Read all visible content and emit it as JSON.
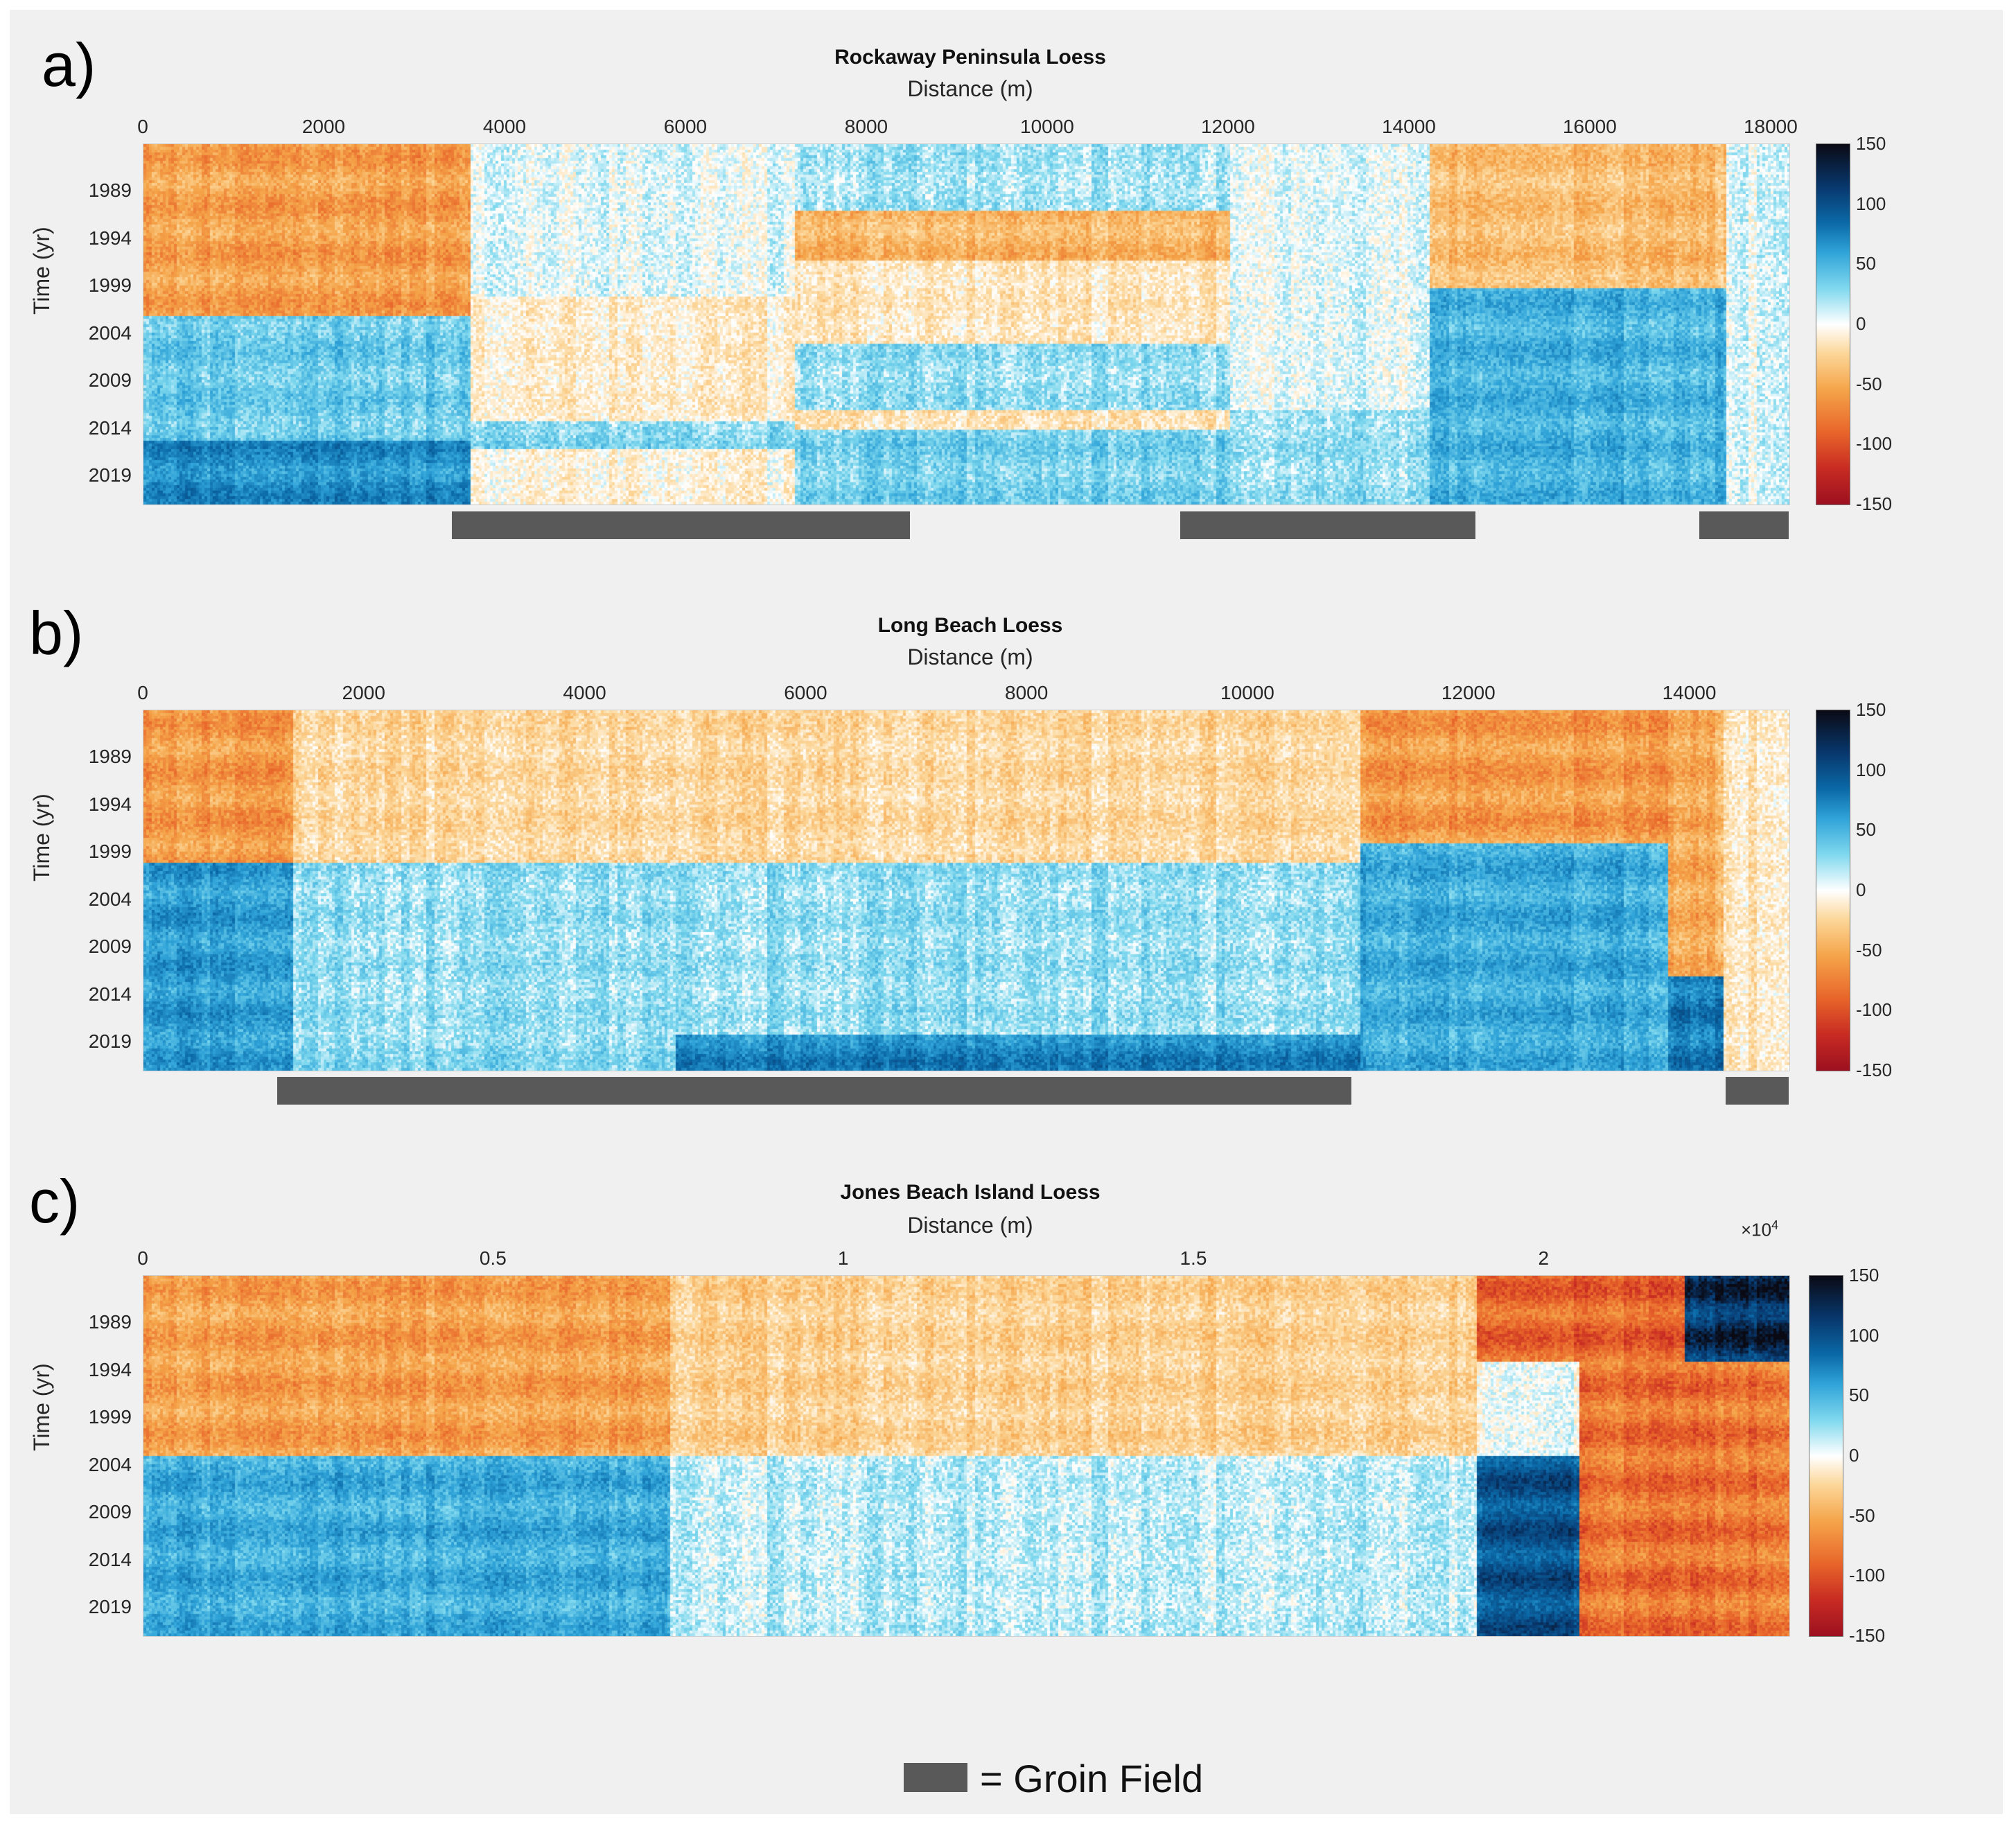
{
  "colorbar": {
    "ticks": [
      "150",
      "100",
      "50",
      "0",
      "-50",
      "-100",
      "-150"
    ],
    "colors": [
      "#0a0a14",
      "#08386e",
      "#0b6aa8",
      "#2fa3d8",
      "#7fd8ee",
      "#ffffff",
      "#fcd79a",
      "#f5a54a",
      "#e8652a",
      "#c82b22",
      "#9c1020"
    ]
  },
  "legend": {
    "label": "= Groin Field",
    "swatch_color": "#595959"
  },
  "chart_data": [
    {
      "type": "heatmap",
      "panel": "a)",
      "title": "Rockaway Peninsula Loess",
      "xlabel": "Distance (m)",
      "ylabel": "Time (yr)",
      "xlim": [
        0,
        18200
      ],
      "xticks": [
        "0",
        "2000",
        "4000",
        "6000",
        "8000",
        "10000",
        "12000",
        "14000",
        "16000",
        "18000"
      ],
      "xtick_values": [
        0,
        2000,
        4000,
        6000,
        8000,
        10000,
        12000,
        14000,
        16000,
        18000
      ],
      "ylim": [
        1984,
        2022
      ],
      "yticks": [
        "1989",
        "1994",
        "1999",
        "2004",
        "2009",
        "2014",
        "2019"
      ],
      "ytick_values": [
        1989,
        1994,
        1999,
        2004,
        2009,
        2014,
        2019
      ],
      "clim": [
        -150,
        150
      ],
      "groin_fields_m": [
        [
          3420,
          8480
        ],
        [
          11470,
          14740
        ],
        [
          17210,
          18250
        ]
      ],
      "regions": [
        {
          "x": [
            0,
            3600
          ],
          "y": [
            1984,
            2002
          ],
          "value": -70
        },
        {
          "x": [
            0,
            3600
          ],
          "y": [
            2002,
            2015
          ],
          "value": 40
        },
        {
          "x": [
            0,
            3600
          ],
          "y": [
            2015,
            2022
          ],
          "value": 80
        },
        {
          "x": [
            3600,
            7200
          ],
          "y": [
            1984,
            2000
          ],
          "value": 5
        },
        {
          "x": [
            3600,
            7200
          ],
          "y": [
            2000,
            2013
          ],
          "value": -15
        },
        {
          "x": [
            3600,
            7200
          ],
          "y": [
            2013,
            2016
          ],
          "value": 30
        },
        {
          "x": [
            3600,
            7200
          ],
          "y": [
            2016,
            2022
          ],
          "value": -10
        },
        {
          "x": [
            7200,
            12000
          ],
          "y": [
            1984,
            1991
          ],
          "value": 20
        },
        {
          "x": [
            7200,
            12000
          ],
          "y": [
            1991,
            1996
          ],
          "value": -55
        },
        {
          "x": [
            7200,
            12000
          ],
          "y": [
            1996,
            2005
          ],
          "value": -20
        },
        {
          "x": [
            7200,
            12000
          ],
          "y": [
            2005,
            2012
          ],
          "value": 25
        },
        {
          "x": [
            7200,
            12000
          ],
          "y": [
            2012,
            2014
          ],
          "value": -25
        },
        {
          "x": [
            7200,
            12000
          ],
          "y": [
            2014,
            2022
          ],
          "value": 35
        },
        {
          "x": [
            12000,
            14200
          ],
          "y": [
            1984,
            2012
          ],
          "value": 5
        },
        {
          "x": [
            12000,
            14200
          ],
          "y": [
            2012,
            2022
          ],
          "value": 25
        },
        {
          "x": [
            14200,
            17500
          ],
          "y": [
            1984,
            1999
          ],
          "value": -50
        },
        {
          "x": [
            14200,
            17500
          ],
          "y": [
            1999,
            2022
          ],
          "value": 55
        },
        {
          "x": [
            17500,
            18200
          ],
          "y": [
            1984,
            2022
          ],
          "value": 5
        }
      ]
    },
    {
      "type": "heatmap",
      "panel": "b)",
      "title": "Long Beach Loess",
      "xlabel": "Distance (m)",
      "ylabel": "Time (yr)",
      "xlim": [
        0,
        14900
      ],
      "xticks": [
        "0",
        "2000",
        "4000",
        "6000",
        "8000",
        "10000",
        "12000",
        "14000"
      ],
      "xtick_values": [
        0,
        2000,
        4000,
        6000,
        8000,
        10000,
        12000,
        14000
      ],
      "ylim": [
        1984,
        2022
      ],
      "yticks": [
        "1989",
        "1994",
        "1999",
        "2004",
        "2009",
        "2014",
        "2019"
      ],
      "ytick_values": [
        1989,
        1994,
        1999,
        2004,
        2009,
        2014,
        2019
      ],
      "clim": [
        -150,
        150
      ],
      "groin_fields_m": [
        [
          1220,
          10940
        ],
        [
          14330,
          14900
        ]
      ],
      "regions": [
        {
          "x": [
            0,
            1350
          ],
          "y": [
            1984,
            2000
          ],
          "value": -75
        },
        {
          "x": [
            0,
            1350
          ],
          "y": [
            2000,
            2022
          ],
          "value": 70
        },
        {
          "x": [
            1350,
            11000
          ],
          "y": [
            1984,
            2000
          ],
          "value": -30
        },
        {
          "x": [
            1350,
            11000
          ],
          "y": [
            2000,
            2018
          ],
          "value": 25
        },
        {
          "x": [
            1350,
            4800
          ],
          "y": [
            2018,
            2022
          ],
          "value": 30
        },
        {
          "x": [
            4800,
            11000
          ],
          "y": [
            2018,
            2022
          ],
          "value": 85
        },
        {
          "x": [
            11000,
            13800
          ],
          "y": [
            1984,
            1998
          ],
          "value": -75
        },
        {
          "x": [
            11000,
            13800
          ],
          "y": [
            1998,
            2022
          ],
          "value": 60
        },
        {
          "x": [
            13800,
            14300
          ],
          "y": [
            1984,
            2012
          ],
          "value": -60
        },
        {
          "x": [
            13800,
            14300
          ],
          "y": [
            2012,
            2022
          ],
          "value": 95
        },
        {
          "x": [
            14300,
            14900
          ],
          "y": [
            1984,
            2022
          ],
          "value": -20
        }
      ]
    },
    {
      "type": "heatmap",
      "panel": "c)",
      "title": "Jones Beach Island Loess",
      "xlabel": "Distance (m)",
      "ylabel": "Time (yr)",
      "x_multiplier": "×10^4",
      "xlim": [
        0,
        2.35
      ],
      "xticks": [
        "0",
        "0.5",
        "1",
        "1.5",
        "2"
      ],
      "xtick_values": [
        0,
        0.5,
        1,
        1.5,
        2
      ],
      "ylim": [
        1984,
        2022
      ],
      "yticks": [
        "1989",
        "1994",
        "1999",
        "2004",
        "2009",
        "2014",
        "2019"
      ],
      "ytick_values": [
        1989,
        1994,
        1999,
        2004,
        2009,
        2014,
        2019
      ],
      "clim": [
        -150,
        150
      ],
      "regions": [
        {
          "x": [
            0,
            0.75
          ],
          "y": [
            1984,
            2003
          ],
          "value": -70
        },
        {
          "x": [
            0,
            0.75
          ],
          "y": [
            2003,
            2022
          ],
          "value": 60
        },
        {
          "x": [
            0.75,
            1.9
          ],
          "y": [
            1984,
            2003
          ],
          "value": -35
        },
        {
          "x": [
            0.75,
            1.9
          ],
          "y": [
            2003,
            2022
          ],
          "value": 15
        },
        {
          "x": [
            1.9,
            2.2
          ],
          "y": [
            1984,
            1993
          ],
          "value": -110
        },
        {
          "x": [
            2.2,
            2.35
          ],
          "y": [
            1984,
            1993
          ],
          "value": 150
        },
        {
          "x": [
            1.9,
            2.05
          ],
          "y": [
            2003,
            2022
          ],
          "value": 120
        },
        {
          "x": [
            2.05,
            2.35
          ],
          "y": [
            1993,
            2022
          ],
          "value": -100
        }
      ]
    }
  ]
}
